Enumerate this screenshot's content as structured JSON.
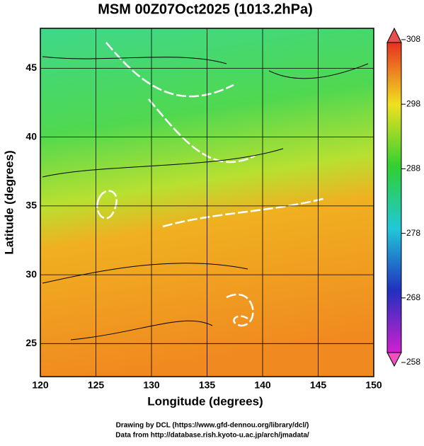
{
  "title": "MSM 00Z07Oct2025 (1013.2hPa)",
  "xlabel": "Longitude (degrees)",
  "ylabel": "Latitude  (degrees)",
  "xlim": [
    120,
    150
  ],
  "xticks": [
    120,
    125,
    130,
    135,
    140,
    145,
    150
  ],
  "ylim": [
    22.6,
    47.9
  ],
  "yticks": [
    25,
    30,
    35,
    40,
    45
  ],
  "colorbar": {
    "lim": [
      258,
      308
    ],
    "ticks": [
      258,
      268,
      278,
      288,
      298,
      308
    ]
  },
  "footer": [
    "Drawing by DCL (https://www.gfd-dennou.org/library/dcl/)",
    "Data from http://database.rish.kyoto-u.ac.jp/arch/jmadata/"
  ]
}
